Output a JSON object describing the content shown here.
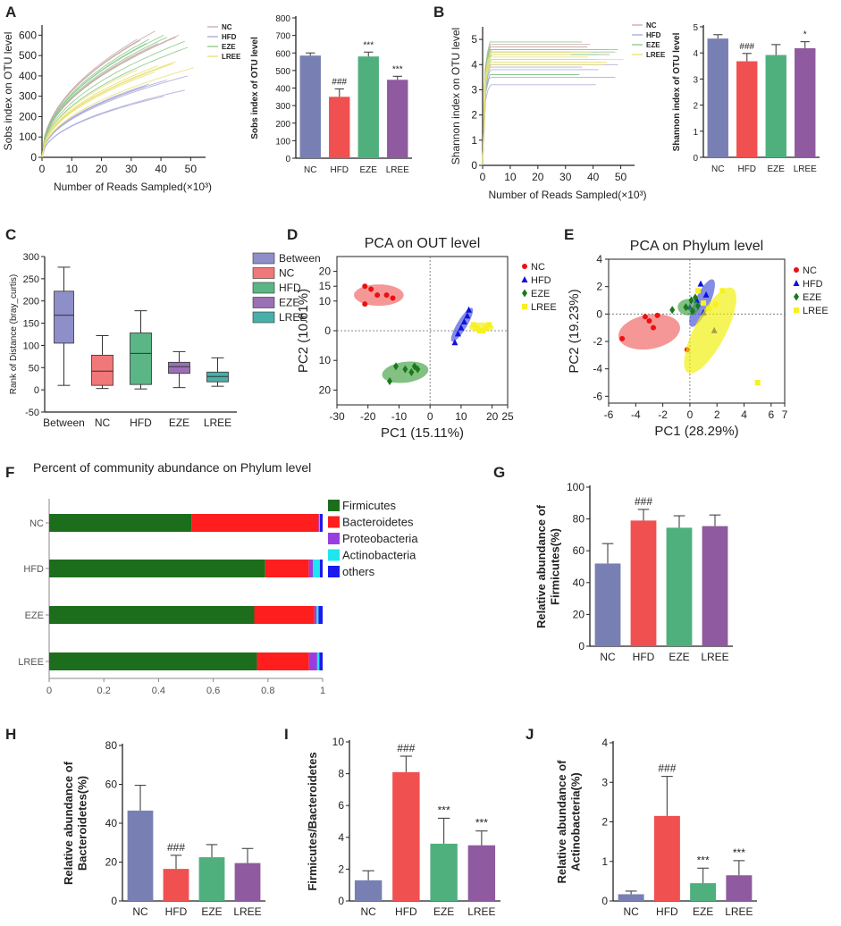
{
  "colors": {
    "NC": "#7880b3",
    "HFD": "#f05050",
    "EZE": "#4fb07e",
    "LREE": "#8f5aa0",
    "Between": "#8e8ec8",
    "C_NC": "#f07878",
    "C_HFD": "#5cb585",
    "C_EZE": "#9a70b5",
    "C_LREE": "#48b0a8",
    "Firmicutes": "#1c6e1c",
    "Bacteroidetes": "#ff1e1e",
    "Proteobacteria": "#9a3de0",
    "Actinobacteria": "#1ee6ee",
    "others": "#1a1aee"
  },
  "chart_data": [
    {
      "id": "A_curve",
      "panel_letter": "A",
      "type": "line",
      "xlabel": "Number of Reads Sampled(×10³)",
      "ylabel": "Sobs index on OTU level",
      "xlim": [
        0,
        55
      ],
      "ylim": [
        0,
        650
      ],
      "xticks": [
        "0",
        "10",
        "20",
        "30",
        "40",
        "50"
      ],
      "yticks": [
        "0",
        "100",
        "200",
        "300",
        "400",
        "500",
        "600"
      ],
      "legend": [
        "NC",
        "HFD",
        "EZE",
        "LREE"
      ],
      "series": [
        {
          "name": "NC",
          "final": [
            620,
            590,
            580,
            560,
            600,
            575
          ]
        },
        {
          "name": "HFD",
          "final": [
            300,
            330,
            350,
            380,
            400,
            360
          ]
        },
        {
          "name": "EZE",
          "final": [
            600,
            570,
            560,
            590,
            540,
            580
          ]
        },
        {
          "name": "LREE",
          "final": [
            460,
            440,
            420,
            470,
            430,
            450
          ]
        }
      ]
    },
    {
      "id": "A_bar",
      "type": "bar",
      "categories": [
        "NC",
        "HFD",
        "EZE",
        "LREE"
      ],
      "values": [
        585,
        350,
        580,
        447
      ],
      "errors": [
        15,
        45,
        25,
        20
      ],
      "annotations": [
        "",
        "###",
        "***",
        "***"
      ],
      "ylabel": "Sobs index of OTU level",
      "ylim": [
        0,
        800
      ],
      "yticks": [
        "0",
        "100",
        "200",
        "300",
        "400",
        "500",
        "600",
        "700",
        "800"
      ]
    },
    {
      "id": "B_curve",
      "panel_letter": "B",
      "type": "line",
      "xlabel": "Number of Reads Sampled(×10³)",
      "ylabel": "Shannon index on OTU level",
      "xlim": [
        0,
        55
      ],
      "ylim": [
        0,
        5.5
      ],
      "xticks": [
        "0",
        "10",
        "20",
        "30",
        "40",
        "50"
      ],
      "yticks": [
        "0",
        "1",
        "2",
        "3",
        "4",
        "5"
      ],
      "legend": [
        "NC",
        "HFD",
        "EZE",
        "LREE"
      ],
      "series": [
        {
          "name": "NC",
          "final": [
            4.7,
            4.6,
            4.5,
            4.8,
            4.4,
            4.6
          ]
        },
        {
          "name": "HFD",
          "final": [
            3.2,
            3.5,
            3.6,
            3.8,
            4.0,
            3.9
          ]
        },
        {
          "name": "EZE",
          "final": [
            4.2,
            4.5,
            3.6,
            4.4,
            4.6,
            4.9
          ]
        },
        {
          "name": "LREE",
          "final": [
            4.0,
            4.2,
            4.3,
            4.1,
            4.4,
            4.5
          ]
        }
      ]
    },
    {
      "id": "B_bar",
      "type": "bar",
      "categories": [
        "NC",
        "HFD",
        "EZE",
        "LREE"
      ],
      "values": [
        4.55,
        3.68,
        3.92,
        4.18
      ],
      "errors": [
        0.15,
        0.3,
        0.4,
        0.25
      ],
      "annotations": [
        "",
        "###",
        "",
        "*"
      ],
      "ylabel": "Shannon index of OTU level",
      "ylim": [
        0,
        5
      ],
      "yticks": [
        "0",
        "1",
        "2",
        "3",
        "4",
        "5"
      ]
    },
    {
      "id": "C_box",
      "panel_letter": "C",
      "type": "box",
      "categories": [
        "Between",
        "NC",
        "HFD",
        "EZE",
        "LREE"
      ],
      "boxes": [
        {
          "min": 10,
          "q1": 105,
          "median": 168,
          "q3": 222,
          "max": 276
        },
        {
          "min": 3,
          "q1": 10,
          "median": 42,
          "q3": 78,
          "max": 122
        },
        {
          "min": 2,
          "q1": 12,
          "median": 82,
          "q3": 128,
          "max": 178
        },
        {
          "min": 5,
          "q1": 37,
          "median": 52,
          "q3": 62,
          "max": 86
        },
        {
          "min": 8,
          "q1": 18,
          "median": 30,
          "q3": 40,
          "max": 72
        }
      ],
      "ylabel": "Rank of Distance (bray_curtis)",
      "ylim": [
        -50,
        300
      ],
      "yticks": [
        "-50",
        "0",
        "50",
        "100",
        "150",
        "200",
        "250",
        "300"
      ],
      "legend": [
        "Between",
        "NC",
        "HFD",
        "EZE",
        "LREE"
      ]
    },
    {
      "id": "D_pca",
      "panel_letter": "D",
      "type": "scatter",
      "title": "PCA on OUT level",
      "xlabel": "PC1 (15.11%)",
      "ylabel": "PC2 (10.61%)",
      "xlim": [
        -30,
        25
      ],
      "ylim": [
        -25,
        25
      ],
      "xticks": [
        -30,
        -20,
        -10,
        0,
        10,
        20,
        25
      ],
      "xticklabels": [
        "-30",
        "-20",
        "-10",
        "0",
        "10",
        "20",
        "25"
      ],
      "yticks": [
        20,
        15,
        10,
        0,
        -10,
        -20
      ],
      "yticklabels": [
        "20",
        "15",
        "10",
        "0",
        "10",
        "20"
      ],
      "legend": [
        "NC",
        "HFD",
        "EZE",
        "LREE"
      ],
      "series": [
        {
          "name": "NC",
          "marker": "circle",
          "points": [
            [
              -21,
              15
            ],
            [
              -19,
              14
            ],
            [
              -17,
              12
            ],
            [
              -14,
              12
            ],
            [
              -12,
              11
            ],
            [
              -21,
              9
            ]
          ],
          "ellipse": {
            "cx": -16.5,
            "cy": 12,
            "rx": 8,
            "ry": 3.6,
            "angle": 0
          }
        },
        {
          "name": "HFD",
          "marker": "triangle",
          "points": [
            [
              8,
              -4
            ],
            [
              9,
              -1
            ],
            [
              10,
              1
            ],
            [
              11,
              3
            ],
            [
              12,
              5
            ],
            [
              12.5,
              7
            ]
          ],
          "ellipse": {
            "cx": 10.3,
            "cy": 2,
            "rx": 6.5,
            "ry": 1.6,
            "angle": -60
          }
        },
        {
          "name": "EZE",
          "marker": "diamond",
          "points": [
            [
              -13,
              -17
            ],
            [
              -11,
              -12
            ],
            [
              -8,
              -13
            ],
            [
              -6,
              -14
            ],
            [
              -5,
              -12
            ],
            [
              -4,
              -13
            ]
          ],
          "ellipse": {
            "cx": -8,
            "cy": -14,
            "rx": 7.5,
            "ry": 3.5,
            "angle": -8
          }
        },
        {
          "name": "LREE",
          "marker": "square",
          "points": [
            [
              14,
              2
            ],
            [
              15,
              1
            ],
            [
              16,
              0
            ],
            [
              17,
              0
            ],
            [
              18,
              1
            ],
            [
              19,
              2
            ]
          ],
          "ellipse": {
            "cx": 16.5,
            "cy": 1.2,
            "rx": 4,
            "ry": 1.6,
            "angle": 0
          }
        }
      ]
    },
    {
      "id": "E_pca",
      "panel_letter": "E",
      "type": "scatter",
      "title": "PCA on Phylum level",
      "xlabel": "PC1 (28.29%)",
      "ylabel": "PC2 (19.23%)",
      "xlim": [
        -6,
        7
      ],
      "ylim": [
        -6.5,
        4
      ],
      "xticks": [
        -6,
        -4,
        -2,
        0,
        2,
        4,
        6,
        7
      ],
      "xticklabels": [
        "-6",
        "-4",
        "-2",
        "0",
        "2",
        "4",
        "6",
        "7"
      ],
      "yticks": [
        4,
        2,
        0,
        -2,
        -4,
        -6
      ],
      "yticklabels": [
        "4",
        "2",
        "0",
        "-2",
        "-4",
        "-6"
      ],
      "legend": [
        "NC",
        "HFD",
        "EZE",
        "LREE"
      ],
      "series": [
        {
          "name": "NC",
          "marker": "circle",
          "points": [
            [
              -5,
              -1.8
            ],
            [
              -3.3,
              -0.2
            ],
            [
              -3,
              -0.5
            ],
            [
              -2.7,
              -1
            ],
            [
              -2.4,
              -0.1
            ],
            [
              -0.2,
              -2.6
            ]
          ],
          "ellipse": {
            "cx": -3,
            "cy": -1.3,
            "rx": 2.3,
            "ry": 1.25,
            "angle": -10
          }
        },
        {
          "name": "HFD",
          "marker": "triangle",
          "points": [
            [
              0,
              0.5
            ],
            [
              0.5,
              1
            ],
            [
              0.8,
              2.2
            ],
            [
              1,
              0.1
            ],
            [
              1.2,
              1.4
            ],
            [
              1.8,
              -1.2
            ]
          ],
          "ellipse": {
            "cx": 0.9,
            "cy": 0.8,
            "rx": 1.9,
            "ry": 0.55,
            "angle": -65
          }
        },
        {
          "name": "EZE",
          "marker": "diamond",
          "points": [
            [
              -1.3,
              0.3
            ],
            [
              -0.3,
              0.5
            ],
            [
              0.1,
              1
            ],
            [
              0.6,
              0.6
            ],
            [
              0.4,
              1.2
            ],
            [
              0.2,
              0.2
            ]
          ],
          "ellipse": {
            "cx": -0.1,
            "cy": 0.5,
            "rx": 0.8,
            "ry": 0.6,
            "angle": 0
          }
        },
        {
          "name": "LREE",
          "marker": "square",
          "points": [
            [
              0.6,
              1.7
            ],
            [
              1,
              0.8
            ],
            [
              1.4,
              0.4
            ],
            [
              1.9,
              0.7
            ],
            [
              2.4,
              1.7
            ],
            [
              5,
              -5
            ]
          ],
          "ellipse": {
            "cx": 1.5,
            "cy": -1.2,
            "rx": 3.5,
            "ry": 1.15,
            "angle": -62
          }
        }
      ]
    },
    {
      "id": "F_stacked",
      "panel_letter": "F",
      "type": "bar",
      "orientation": "horizontal-stacked",
      "title": "Percent of community abundance on Phylum level",
      "categories": [
        "NC",
        "HFD",
        "EZE",
        "LREE"
      ],
      "series": [
        {
          "name": "Firmicutes",
          "values": [
            0.52,
            0.79,
            0.75,
            0.76
          ]
        },
        {
          "name": "Bacteroidetes",
          "values": [
            0.465,
            0.16,
            0.22,
            0.19
          ]
        },
        {
          "name": "Proteobacteria",
          "values": [
            0.003,
            0.015,
            0.008,
            0.03
          ]
        },
        {
          "name": "Actinobacteria",
          "values": [
            0.002,
            0.025,
            0.007,
            0.008
          ]
        },
        {
          "name": "others",
          "values": [
            0.01,
            0.01,
            0.015,
            0.012
          ]
        }
      ],
      "xlim": [
        0,
        1
      ],
      "xticks": [
        "0",
        "0.2",
        "0.4",
        "0.6",
        "0.8",
        "1"
      ]
    },
    {
      "id": "G_bar",
      "panel_letter": "G",
      "type": "bar",
      "categories": [
        "NC",
        "HFD",
        "EZE",
        "LREE"
      ],
      "values": [
        52,
        79,
        74.5,
        75.5
      ],
      "errors": [
        12.5,
        7,
        7.5,
        7
      ],
      "annotations": [
        "",
        "###",
        "",
        ""
      ],
      "ylabel": "Relative abundance of Firmicutes(%)",
      "ylim": [
        0,
        100
      ],
      "yticks": [
        "0",
        "20",
        "40",
        "60",
        "80",
        "100"
      ]
    },
    {
      "id": "H_bar",
      "panel_letter": "H",
      "type": "bar",
      "categories": [
        "NC",
        "HFD",
        "EZE",
        "LREE"
      ],
      "values": [
        46.5,
        16.5,
        22.5,
        19.5
      ],
      "errors": [
        13,
        7,
        6.5,
        7.5
      ],
      "annotations": [
        "",
        "###",
        "",
        ""
      ],
      "ylabel": "Relative abundance of Bacteroidetes(%)",
      "ylim": [
        0,
        80
      ],
      "yticks": [
        "0",
        "20",
        "40",
        "60",
        "80"
      ]
    },
    {
      "id": "I_bar",
      "panel_letter": "I",
      "type": "bar",
      "categories": [
        "NC",
        "HFD",
        "EZE",
        "LREE"
      ],
      "values": [
        1.3,
        8.1,
        3.6,
        3.5
      ],
      "errors": [
        0.6,
        1,
        1.6,
        0.9
      ],
      "annotations": [
        "",
        "###",
        "***",
        "***"
      ],
      "ylabel": "Firmicutes/Bacteroidetes",
      "ylim": [
        0,
        10
      ],
      "yticks": [
        "0",
        "2",
        "4",
        "6",
        "8",
        "10"
      ]
    },
    {
      "id": "J_bar",
      "panel_letter": "J",
      "type": "bar",
      "categories": [
        "NC",
        "HFD",
        "EZE",
        "LREE"
      ],
      "values": [
        0.17,
        2.15,
        0.45,
        0.65
      ],
      "errors": [
        0.08,
        1,
        0.38,
        0.37
      ],
      "annotations": [
        "",
        "###",
        "***",
        "***"
      ],
      "ylabel": "Relative abundance of Actinobacteria(%)",
      "ylim": [
        0,
        4
      ],
      "yticks": [
        "0",
        "1",
        "2",
        "3",
        "4"
      ]
    }
  ]
}
